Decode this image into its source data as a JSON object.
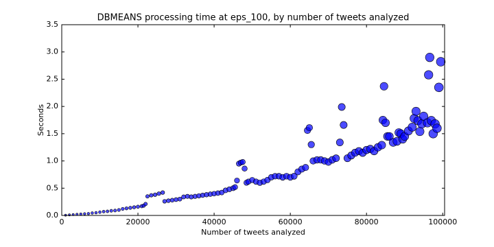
{
  "chart_data": {
    "type": "scatter",
    "title": "DBMEANS processing time at eps_100, by number of tweets analyzed",
    "xlabel": "Number of tweets analyzed",
    "ylabel": "Seconds",
    "color": "#0000ff",
    "xlim": [
      0,
      100500
    ],
    "ylim": [
      0,
      3.5
    ],
    "xticks": [
      0,
      20000,
      40000,
      60000,
      80000,
      100000
    ],
    "yticks": [
      {
        "value": 0,
        "label": "0.0"
      },
      0.5,
      {
        "value": 1,
        "label": "1.0"
      },
      1.5,
      {
        "value": 2,
        "label": "2.0"
      },
      2.5,
      {
        "value": 3,
        "label": "3.0"
      },
      3.5
    ],
    "x": [
      1000,
      2000,
      3000,
      4000,
      5000,
      6000,
      7000,
      8000,
      9000,
      10000,
      11000,
      12000,
      13000,
      14000,
      15000,
      16000,
      17000,
      18000,
      19000,
      20000,
      21000,
      21500,
      22000,
      22500,
      23500,
      24500,
      25500,
      26500,
      27000,
      28000,
      29000,
      30000,
      31000,
      32000,
      33000,
      34000,
      35000,
      36000,
      37000,
      38000,
      39000,
      40000,
      41000,
      42000,
      43000,
      44000,
      45000,
      45500,
      46000,
      46500,
      47000,
      47500,
      48000,
      48500,
      49000,
      50000,
      51000,
      52000,
      53000,
      54000,
      55000,
      56000,
      57000,
      58000,
      59000,
      60000,
      61000,
      62000,
      63000,
      64000,
      64500,
      65000,
      65500,
      66000,
      67000,
      68000,
      69000,
      70000,
      71000,
      72000,
      73000,
      73500,
      74000,
      75000,
      76000,
      77000,
      78000,
      79000,
      80000,
      81000,
      82000,
      83000,
      84000,
      84300,
      84600,
      85000,
      85500,
      86000,
      87000,
      88000,
      88500,
      89000,
      89500,
      90000,
      91000,
      92000,
      92500,
      93000,
      93500,
      94000,
      94500,
      95000,
      96000,
      96300,
      96600,
      97000,
      97500,
      98000,
      98500,
      99000,
      99500
    ],
    "values": [
      0.005,
      0.01,
      0.015,
      0.02,
      0.025,
      0.03,
      0.035,
      0.045,
      0.05,
      0.06,
      0.07,
      0.075,
      0.085,
      0.09,
      0.1,
      0.12,
      0.13,
      0.14,
      0.15,
      0.16,
      0.17,
      0.18,
      0.21,
      0.35,
      0.37,
      0.38,
      0.4,
      0.42,
      0.26,
      0.27,
      0.28,
      0.29,
      0.3,
      0.34,
      0.35,
      0.34,
      0.35,
      0.36,
      0.37,
      0.38,
      0.39,
      0.4,
      0.41,
      0.42,
      0.46,
      0.48,
      0.5,
      0.52,
      0.64,
      0.95,
      0.97,
      0.98,
      0.86,
      0.6,
      0.62,
      0.65,
      0.62,
      0.6,
      0.62,
      0.65,
      0.7,
      0.72,
      0.72,
      0.7,
      0.72,
      0.7,
      0.72,
      0.8,
      0.85,
      0.88,
      1.56,
      1.61,
      1.3,
      1.0,
      1.02,
      1.02,
      1.0,
      0.98,
      1.02,
      1.05,
      1.34,
      1.99,
      1.66,
      1.05,
      1.1,
      1.15,
      1.18,
      1.15,
      1.2,
      1.22,
      1.18,
      1.25,
      1.29,
      1.75,
      2.37,
      1.7,
      1.45,
      1.45,
      1.34,
      1.36,
      1.52,
      1.5,
      1.4,
      1.45,
      1.55,
      1.62,
      1.78,
      1.91,
      1.74,
      1.54,
      1.68,
      1.82,
      1.7,
      2.58,
      2.9,
      1.74,
      1.5,
      1.68,
      1.6,
      2.35,
      2.82
    ]
  }
}
